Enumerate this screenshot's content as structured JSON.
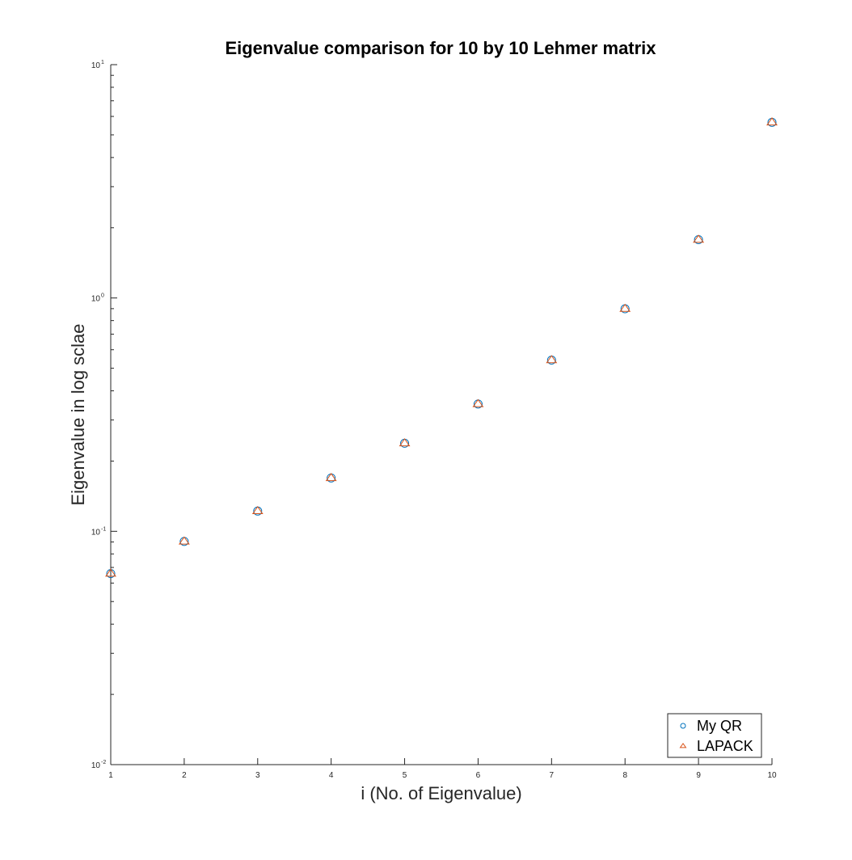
{
  "chart_data": {
    "type": "scatter",
    "title": "Eigenvalue comparison for 10 by 10 Lehmer matrix",
    "xlabel": "i (No. of Eigenvalue)",
    "ylabel": "Eigenvalue in log sclae",
    "xlim": [
      1,
      10
    ],
    "ylim": [
      0.01,
      10
    ],
    "yscale": "log",
    "xticks": [
      "1",
      "2",
      "3",
      "4",
      "5",
      "6",
      "7",
      "8",
      "9",
      "10"
    ],
    "yticks": [
      {
        "value": 0.01,
        "base": "10",
        "exp": "-2"
      },
      {
        "value": 0.1,
        "base": "10",
        "exp": "-1"
      },
      {
        "value": 1,
        "base": "10",
        "exp": "0"
      },
      {
        "value": 10,
        "base": "10",
        "exp": "1"
      }
    ],
    "grid": false,
    "legend_position": "bottom-right",
    "x": [
      1,
      2,
      3,
      4,
      5,
      6,
      7,
      8,
      9,
      10
    ],
    "series": [
      {
        "name": "My QR",
        "marker": "circle",
        "color": "#0072BD",
        "values": [
          0.0659,
          0.0905,
          0.1221,
          0.1693,
          0.2384,
          0.3512,
          0.5418,
          0.8988,
          1.7784,
          5.6614
        ]
      },
      {
        "name": "LAPACK",
        "marker": "triangle",
        "color": "#D95319",
        "values": [
          0.0659,
          0.0905,
          0.1221,
          0.1693,
          0.2384,
          0.3512,
          0.5418,
          0.8988,
          1.7784,
          5.6614
        ]
      }
    ]
  }
}
